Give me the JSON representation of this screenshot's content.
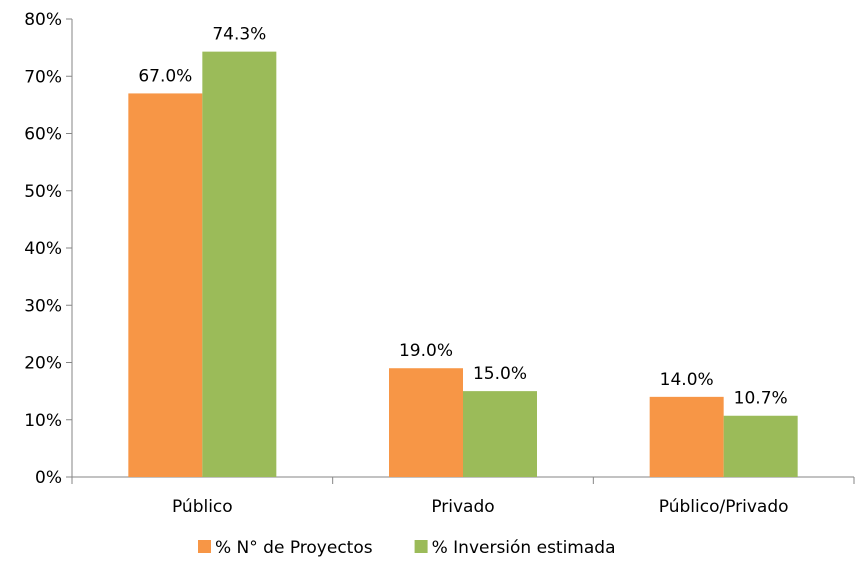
{
  "chart_data": {
    "type": "bar",
    "title": "",
    "xlabel": "",
    "ylabel": "",
    "categories": [
      "Público",
      "Privado",
      "Público/Privado"
    ],
    "series": [
      {
        "name": "% N° de Proyectos",
        "color": "#f79646",
        "values": [
          67.0,
          19.0,
          14.0
        ],
        "labels": [
          "67.0%",
          "19.0%",
          "14.0%"
        ]
      },
      {
        "name": "% Inversión estimada",
        "color": "#9bbb59",
        "values": [
          74.3,
          15.0,
          10.7
        ],
        "labels": [
          "74.3%",
          "15.0%",
          "10.7%"
        ]
      }
    ],
    "ylim": [
      0,
      80
    ],
    "yticks": [
      0,
      10,
      20,
      30,
      40,
      50,
      60,
      70,
      80
    ],
    "ytick_labels": [
      "0%",
      "10%",
      "20%",
      "30%",
      "40%",
      "50%",
      "60%",
      "70%",
      "80%"
    ],
    "grid": false,
    "legend_position": "bottom"
  }
}
